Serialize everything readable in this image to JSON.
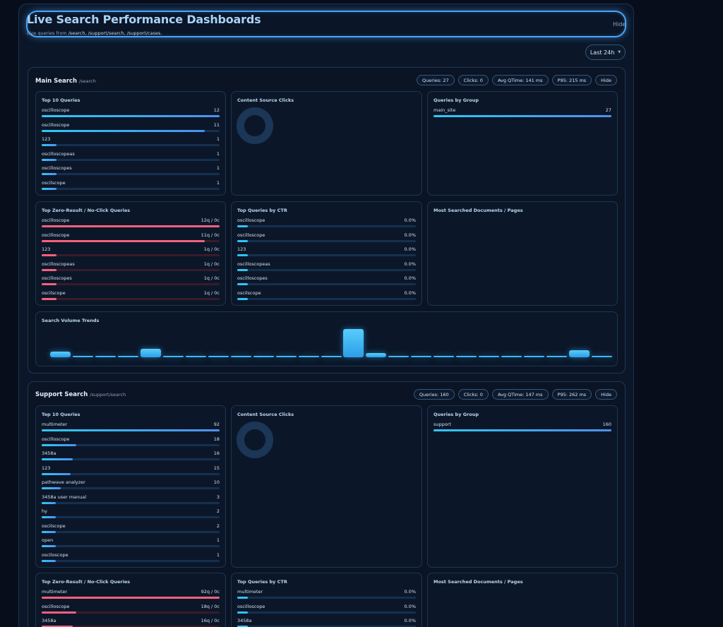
{
  "header": {
    "title": "Live Search Performance Dashboards",
    "subtitle_prefix": "Live queries from",
    "subtitle_paths": "/search, /support/search, /support/cases.",
    "hide_label": "Hide"
  },
  "range": {
    "label": "Last 24h"
  },
  "main": {
    "title": "Main Search",
    "path": "/search",
    "stats": {
      "queries": "Queries: 27",
      "clicks": "Clicks: 0",
      "avg": "Avg QTime: 141 ms",
      "p95": "P95: 215 ms",
      "hide": "Hide"
    },
    "top10": {
      "title": "Top 10 Queries",
      "items": [
        {
          "label": "oscilloscope",
          "value": "12",
          "fraction": 1.0
        },
        {
          "label": "oscilloscope",
          "value": "11",
          "fraction": 0.917
        },
        {
          "label": "123",
          "value": "1",
          "fraction": 0.083
        },
        {
          "label": "oscilloscopeas",
          "value": "1",
          "fraction": 0.083
        },
        {
          "label": "oscilloscopes",
          "value": "1",
          "fraction": 0.083
        },
        {
          "label": "oscilscope",
          "value": "1",
          "fraction": 0.083
        }
      ]
    },
    "content_clicks": {
      "title": "Content Source Clicks"
    },
    "groups": {
      "title": "Queries by Group",
      "items": [
        {
          "label": "main_site",
          "value": "27",
          "fraction": 1.0
        }
      ]
    },
    "zero": {
      "title": "Top Zero-Result / No-Click Queries",
      "items": [
        {
          "label": "oscilloscope",
          "value": "12q / 0c",
          "fraction": 1.0
        },
        {
          "label": "oscilloscope",
          "value": "11q / 0c",
          "fraction": 0.917
        },
        {
          "label": "123",
          "value": "1q / 0c",
          "fraction": 0.083
        },
        {
          "label": "oscilloscopeas",
          "value": "1q / 0c",
          "fraction": 0.083
        },
        {
          "label": "oscilloscopes",
          "value": "1q / 0c",
          "fraction": 0.083
        },
        {
          "label": "oscilscope",
          "value": "1q / 0c",
          "fraction": 0.083
        }
      ]
    },
    "ctr": {
      "title": "Top Queries by CTR",
      "items": [
        {
          "label": "oscilloscope",
          "value": "0.0%"
        },
        {
          "label": "oscilloscope",
          "value": "0.0%"
        },
        {
          "label": "123",
          "value": "0.0%"
        },
        {
          "label": "oscilloscopeas",
          "value": "0.0%"
        },
        {
          "label": "oscilloscopes",
          "value": "0.0%"
        },
        {
          "label": "oscilscope",
          "value": "0.0%"
        }
      ]
    },
    "docs": {
      "title": "Most Searched Documents / Pages"
    },
    "trend": {
      "title": "Search Volume Trends",
      "values": [
        2,
        0,
        0.5,
        0.5,
        3,
        0,
        0,
        0,
        0,
        0,
        0,
        0,
        0,
        10,
        1.5,
        0,
        0,
        0,
        0,
        0,
        0.5,
        0,
        0.5,
        2.5,
        0.5
      ]
    }
  },
  "support": {
    "title": "Support Search",
    "path": "/support/search",
    "stats": {
      "queries": "Queries: 160",
      "clicks": "Clicks: 0",
      "avg": "Avg QTime: 147 ms",
      "p95": "P95: 262 ms",
      "hide": "Hide"
    },
    "top10": {
      "title": "Top 10 Queries",
      "items": [
        {
          "label": "multimeter",
          "value": "92",
          "fraction": 1.0
        },
        {
          "label": "oscilloscope",
          "value": "18",
          "fraction": 0.196
        },
        {
          "label": "3458a",
          "value": "16",
          "fraction": 0.174
        },
        {
          "label": "123",
          "value": "15",
          "fraction": 0.163
        },
        {
          "label": "pathwave analyzer",
          "value": "10",
          "fraction": 0.109
        },
        {
          "label": "3458a user manual",
          "value": "3",
          "fraction": 0.08
        },
        {
          "label": "hy",
          "value": "2",
          "fraction": 0.08
        },
        {
          "label": "oscilscope",
          "value": "2",
          "fraction": 0.08
        },
        {
          "label": "open",
          "value": "1",
          "fraction": 0.08
        },
        {
          "label": "osciloscope",
          "value": "1",
          "fraction": 0.08
        }
      ]
    },
    "content_clicks": {
      "title": "Content Source Clicks"
    },
    "groups": {
      "title": "Queries by Group",
      "items": [
        {
          "label": "support",
          "value": "160",
          "fraction": 1.0
        }
      ]
    },
    "zero": {
      "title": "Top Zero-Result / No-Click Queries",
      "items": [
        {
          "label": "multimeter",
          "value": "92q / 0c",
          "fraction": 1.0
        },
        {
          "label": "oscilloscope",
          "value": "18q / 0c",
          "fraction": 0.196
        },
        {
          "label": "3458a",
          "value": "16q / 0c",
          "fraction": 0.174
        }
      ]
    },
    "ctr": {
      "title": "Top Queries by CTR",
      "items": [
        {
          "label": "multimeter",
          "value": "0.0%"
        },
        {
          "label": "oscilloscope",
          "value": "0.0%"
        },
        {
          "label": "3458a",
          "value": "0.0%"
        }
      ]
    },
    "docs": {
      "title": "Most Searched Documents / Pages"
    }
  }
}
